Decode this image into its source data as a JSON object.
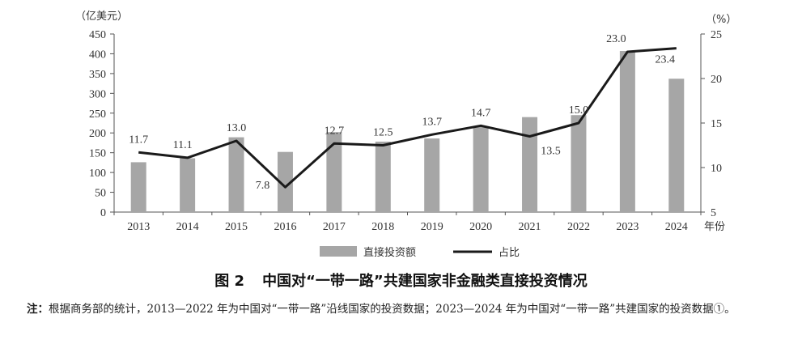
{
  "chart_data": {
    "type": "bar+line",
    "categories": [
      "2013",
      "2014",
      "2015",
      "2016",
      "2017",
      "2018",
      "2019",
      "2020",
      "2021",
      "2022",
      "2023",
      "2024"
    ],
    "xlabel": "年份",
    "left_axis": {
      "unit": "（亿美元）",
      "range": [
        0,
        450
      ],
      "ticks": [
        "0",
        "50",
        "100",
        "150",
        "200",
        "250",
        "300",
        "350",
        "400",
        "450"
      ]
    },
    "right_axis": {
      "unit": "（%）",
      "range": [
        5,
        25
      ],
      "ticks": [
        "5",
        "10",
        "15",
        "20",
        "25"
      ]
    },
    "series": [
      {
        "name": "直接投资额",
        "type": "bar",
        "axis": "left",
        "color": "#a6a6a6",
        "values": [
          126,
          136,
          189,
          152,
          202,
          178,
          186,
          217,
          240,
          245,
          407,
          337
        ]
      },
      {
        "name": "占比",
        "type": "line",
        "axis": "right",
        "color": "#1a1a1a",
        "values": [
          11.7,
          11.1,
          13.0,
          7.8,
          12.7,
          12.5,
          13.7,
          14.7,
          13.5,
          15.0,
          23.0,
          23.4
        ],
        "labels": [
          "11.7",
          "11.1",
          "13.0",
          "7.8",
          "12.7",
          "12.5",
          "13.7",
          "14.7",
          "13.5",
          "15.0",
          "23.0",
          "23.4"
        ]
      }
    ],
    "legend_position": "bottom-center",
    "grid": false
  },
  "caption": {
    "number": "图 2",
    "title": "中国对“一带一路”共建国家非金融类直接投资情况"
  },
  "note": {
    "label": "注：",
    "text": "根据商务部的统计，2013—2022 年为中国对“一带一路”沿线国家的投资数据；2023—2024 年为中国对“一带一路”共建国家的投资数据①。"
  }
}
